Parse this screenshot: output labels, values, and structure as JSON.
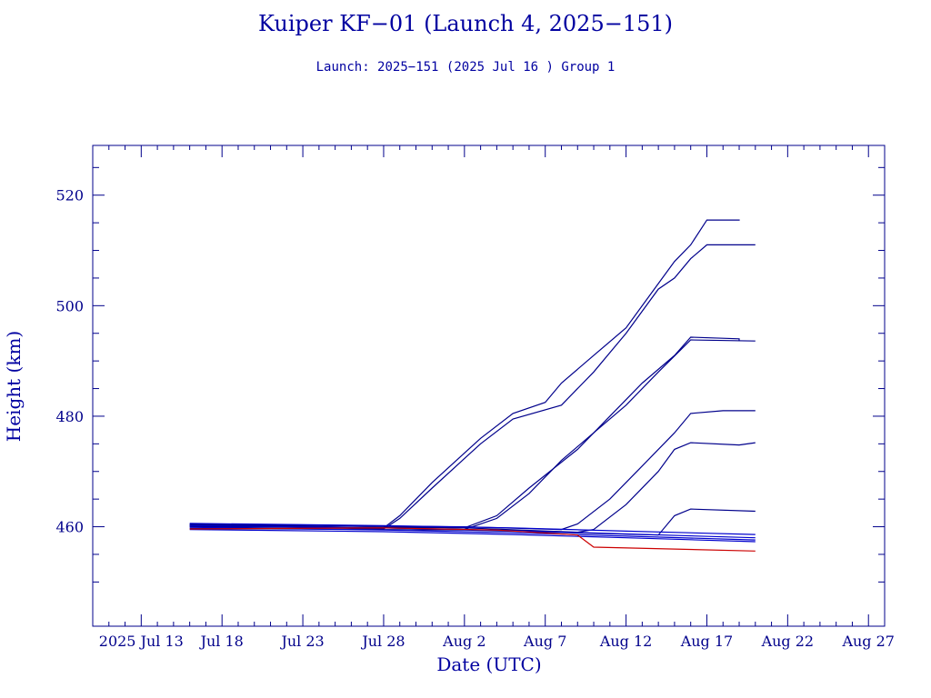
{
  "header": {
    "title": "Kuiper KF−01 (Launch 4, 2025−151)",
    "subtitle": "Launch: 2025−151  (2025 Jul 16 )  Group 1"
  },
  "colors": {
    "axis": "#00008b",
    "series_main": "#0000cd",
    "series_dark": "#00008b",
    "series_red": "#cc0000"
  },
  "chart_data": {
    "type": "line",
    "title": "Kuiper KF−01 (Launch 4, 2025−151)",
    "subtitle": "Launch: 2025−151  (2025 Jul 16 )  Group 1",
    "xlabel": "Date (UTC)",
    "ylabel": "Height (km)",
    "xlim": [
      "2025-07-10",
      "2025-08-28"
    ],
    "ylim": [
      442,
      529
    ],
    "x_ticks": [
      {
        "date": "2025-07-13",
        "label": "2025 Jul 13"
      },
      {
        "date": "2025-07-18",
        "label": "Jul 18"
      },
      {
        "date": "2025-07-23",
        "label": "Jul 23"
      },
      {
        "date": "2025-07-28",
        "label": "Jul 28"
      },
      {
        "date": "2025-08-02",
        "label": "Aug 2"
      },
      {
        "date": "2025-08-07",
        "label": "Aug 7"
      },
      {
        "date": "2025-08-12",
        "label": "Aug 12"
      },
      {
        "date": "2025-08-17",
        "label": "Aug 17"
      },
      {
        "date": "2025-08-22",
        "label": "Aug 22"
      },
      {
        "date": "2025-08-27",
        "label": "Aug 27"
      }
    ],
    "y_ticks": [
      {
        "value": 460,
        "label": "460"
      },
      {
        "value": 480,
        "label": "480"
      },
      {
        "value": 500,
        "label": "500"
      },
      {
        "value": 520,
        "label": "520"
      }
    ],
    "grid": false,
    "series": [
      {
        "color": "#00008b",
        "x": [
          "2025-07-16",
          "2025-07-22",
          "2025-07-28",
          "2025-07-29",
          "2025-07-31",
          "2025-08-03",
          "2025-08-05",
          "2025-08-07",
          "2025-08-08",
          "2025-08-10",
          "2025-08-12",
          "2025-08-14",
          "2025-08-15",
          "2025-08-16",
          "2025-08-17",
          "2025-08-19",
          "2025-08-19"
        ],
        "y": [
          460.3,
          460.1,
          459.8,
          462.0,
          468.0,
          476.0,
          480.5,
          482.5,
          486.0,
          491.0,
          496.0,
          504.0,
          508.0,
          511.0,
          515.5,
          515.5,
          515.4
        ]
      },
      {
        "color": "#00008b",
        "x": [
          "2025-07-16",
          "2025-07-22",
          "2025-07-28",
          "2025-07-29",
          "2025-07-31",
          "2025-08-03",
          "2025-08-05",
          "2025-08-08",
          "2025-08-10",
          "2025-08-12",
          "2025-08-14",
          "2025-08-15",
          "2025-08-16",
          "2025-08-17",
          "2025-08-20"
        ],
        "y": [
          460.0,
          459.9,
          459.6,
          461.5,
          467.0,
          475.0,
          479.5,
          482.0,
          488.0,
          495.0,
          503.0,
          505.0,
          508.5,
          511.0,
          511.0
        ]
      },
      {
        "color": "#00008b",
        "x": [
          "2025-07-16",
          "2025-07-24",
          "2025-08-02",
          "2025-08-04",
          "2025-08-06",
          "2025-08-09",
          "2025-08-11",
          "2025-08-13",
          "2025-08-15",
          "2025-08-16",
          "2025-08-19",
          "2025-08-19"
        ],
        "y": [
          460.5,
          460.3,
          459.8,
          462.0,
          467.0,
          474.0,
          480.0,
          486.0,
          491.0,
          494.3,
          494.0,
          493.6
        ]
      },
      {
        "color": "#00008b",
        "x": [
          "2025-07-16",
          "2025-07-24",
          "2025-08-02",
          "2025-08-04",
          "2025-08-06",
          "2025-08-08",
          "2025-08-10",
          "2025-08-12",
          "2025-08-14",
          "2025-08-16",
          "2025-08-20"
        ],
        "y": [
          460.2,
          460.0,
          459.5,
          461.5,
          466.0,
          472.0,
          477.0,
          482.0,
          488.0,
          493.8,
          493.6
        ]
      },
      {
        "color": "#00008b",
        "x": [
          "2025-07-16",
          "2025-08-02",
          "2025-08-08",
          "2025-08-09",
          "2025-08-11",
          "2025-08-13",
          "2025-08-15",
          "2025-08-16",
          "2025-08-18",
          "2025-08-20"
        ],
        "y": [
          460.4,
          460.0,
          459.5,
          460.5,
          465.0,
          471.0,
          477.0,
          480.5,
          481.0,
          481.0
        ]
      },
      {
        "color": "#00008b",
        "x": [
          "2025-07-16",
          "2025-08-02",
          "2025-08-09",
          "2025-08-10",
          "2025-08-12",
          "2025-08-14",
          "2025-08-15",
          "2025-08-16",
          "2025-08-19",
          "2025-08-20"
        ],
        "y": [
          460.1,
          459.8,
          459.0,
          459.5,
          464.0,
          470.0,
          474.0,
          475.2,
          474.8,
          475.2
        ]
      },
      {
        "color": "#00008b",
        "x": [
          "2025-07-16",
          "2025-08-02",
          "2025-08-14",
          "2025-08-15",
          "2025-08-16",
          "2025-08-20"
        ],
        "y": [
          459.7,
          459.4,
          458.5,
          462.0,
          463.2,
          462.8
        ]
      },
      {
        "color": "#0000cd",
        "x": [
          "2025-07-16",
          "2025-07-28",
          "2025-08-05",
          "2025-08-12",
          "2025-08-20"
        ],
        "y": [
          460.6,
          460.2,
          459.8,
          459.2,
          458.6
        ]
      },
      {
        "color": "#0000cd",
        "x": [
          "2025-07-16",
          "2025-07-28",
          "2025-08-05",
          "2025-08-12",
          "2025-08-20"
        ],
        "y": [
          460.2,
          459.8,
          459.3,
          458.7,
          458.0
        ]
      },
      {
        "color": "#0000cd",
        "x": [
          "2025-07-16",
          "2025-07-28",
          "2025-08-05",
          "2025-08-12",
          "2025-08-20"
        ],
        "y": [
          459.9,
          459.4,
          458.9,
          458.3,
          457.6
        ]
      },
      {
        "color": "#0000cd",
        "x": [
          "2025-07-16",
          "2025-07-28",
          "2025-08-05",
          "2025-08-12",
          "2025-08-20"
        ],
        "y": [
          459.5,
          459.1,
          458.6,
          458.0,
          457.3
        ]
      },
      {
        "color": "#cc0000",
        "x": [
          "2025-07-16",
          "2025-07-28",
          "2025-08-04",
          "2025-08-09",
          "2025-08-10",
          "2025-08-20"
        ],
        "y": [
          459.6,
          459.8,
          459.4,
          458.5,
          456.3,
          455.6
        ]
      }
    ]
  }
}
